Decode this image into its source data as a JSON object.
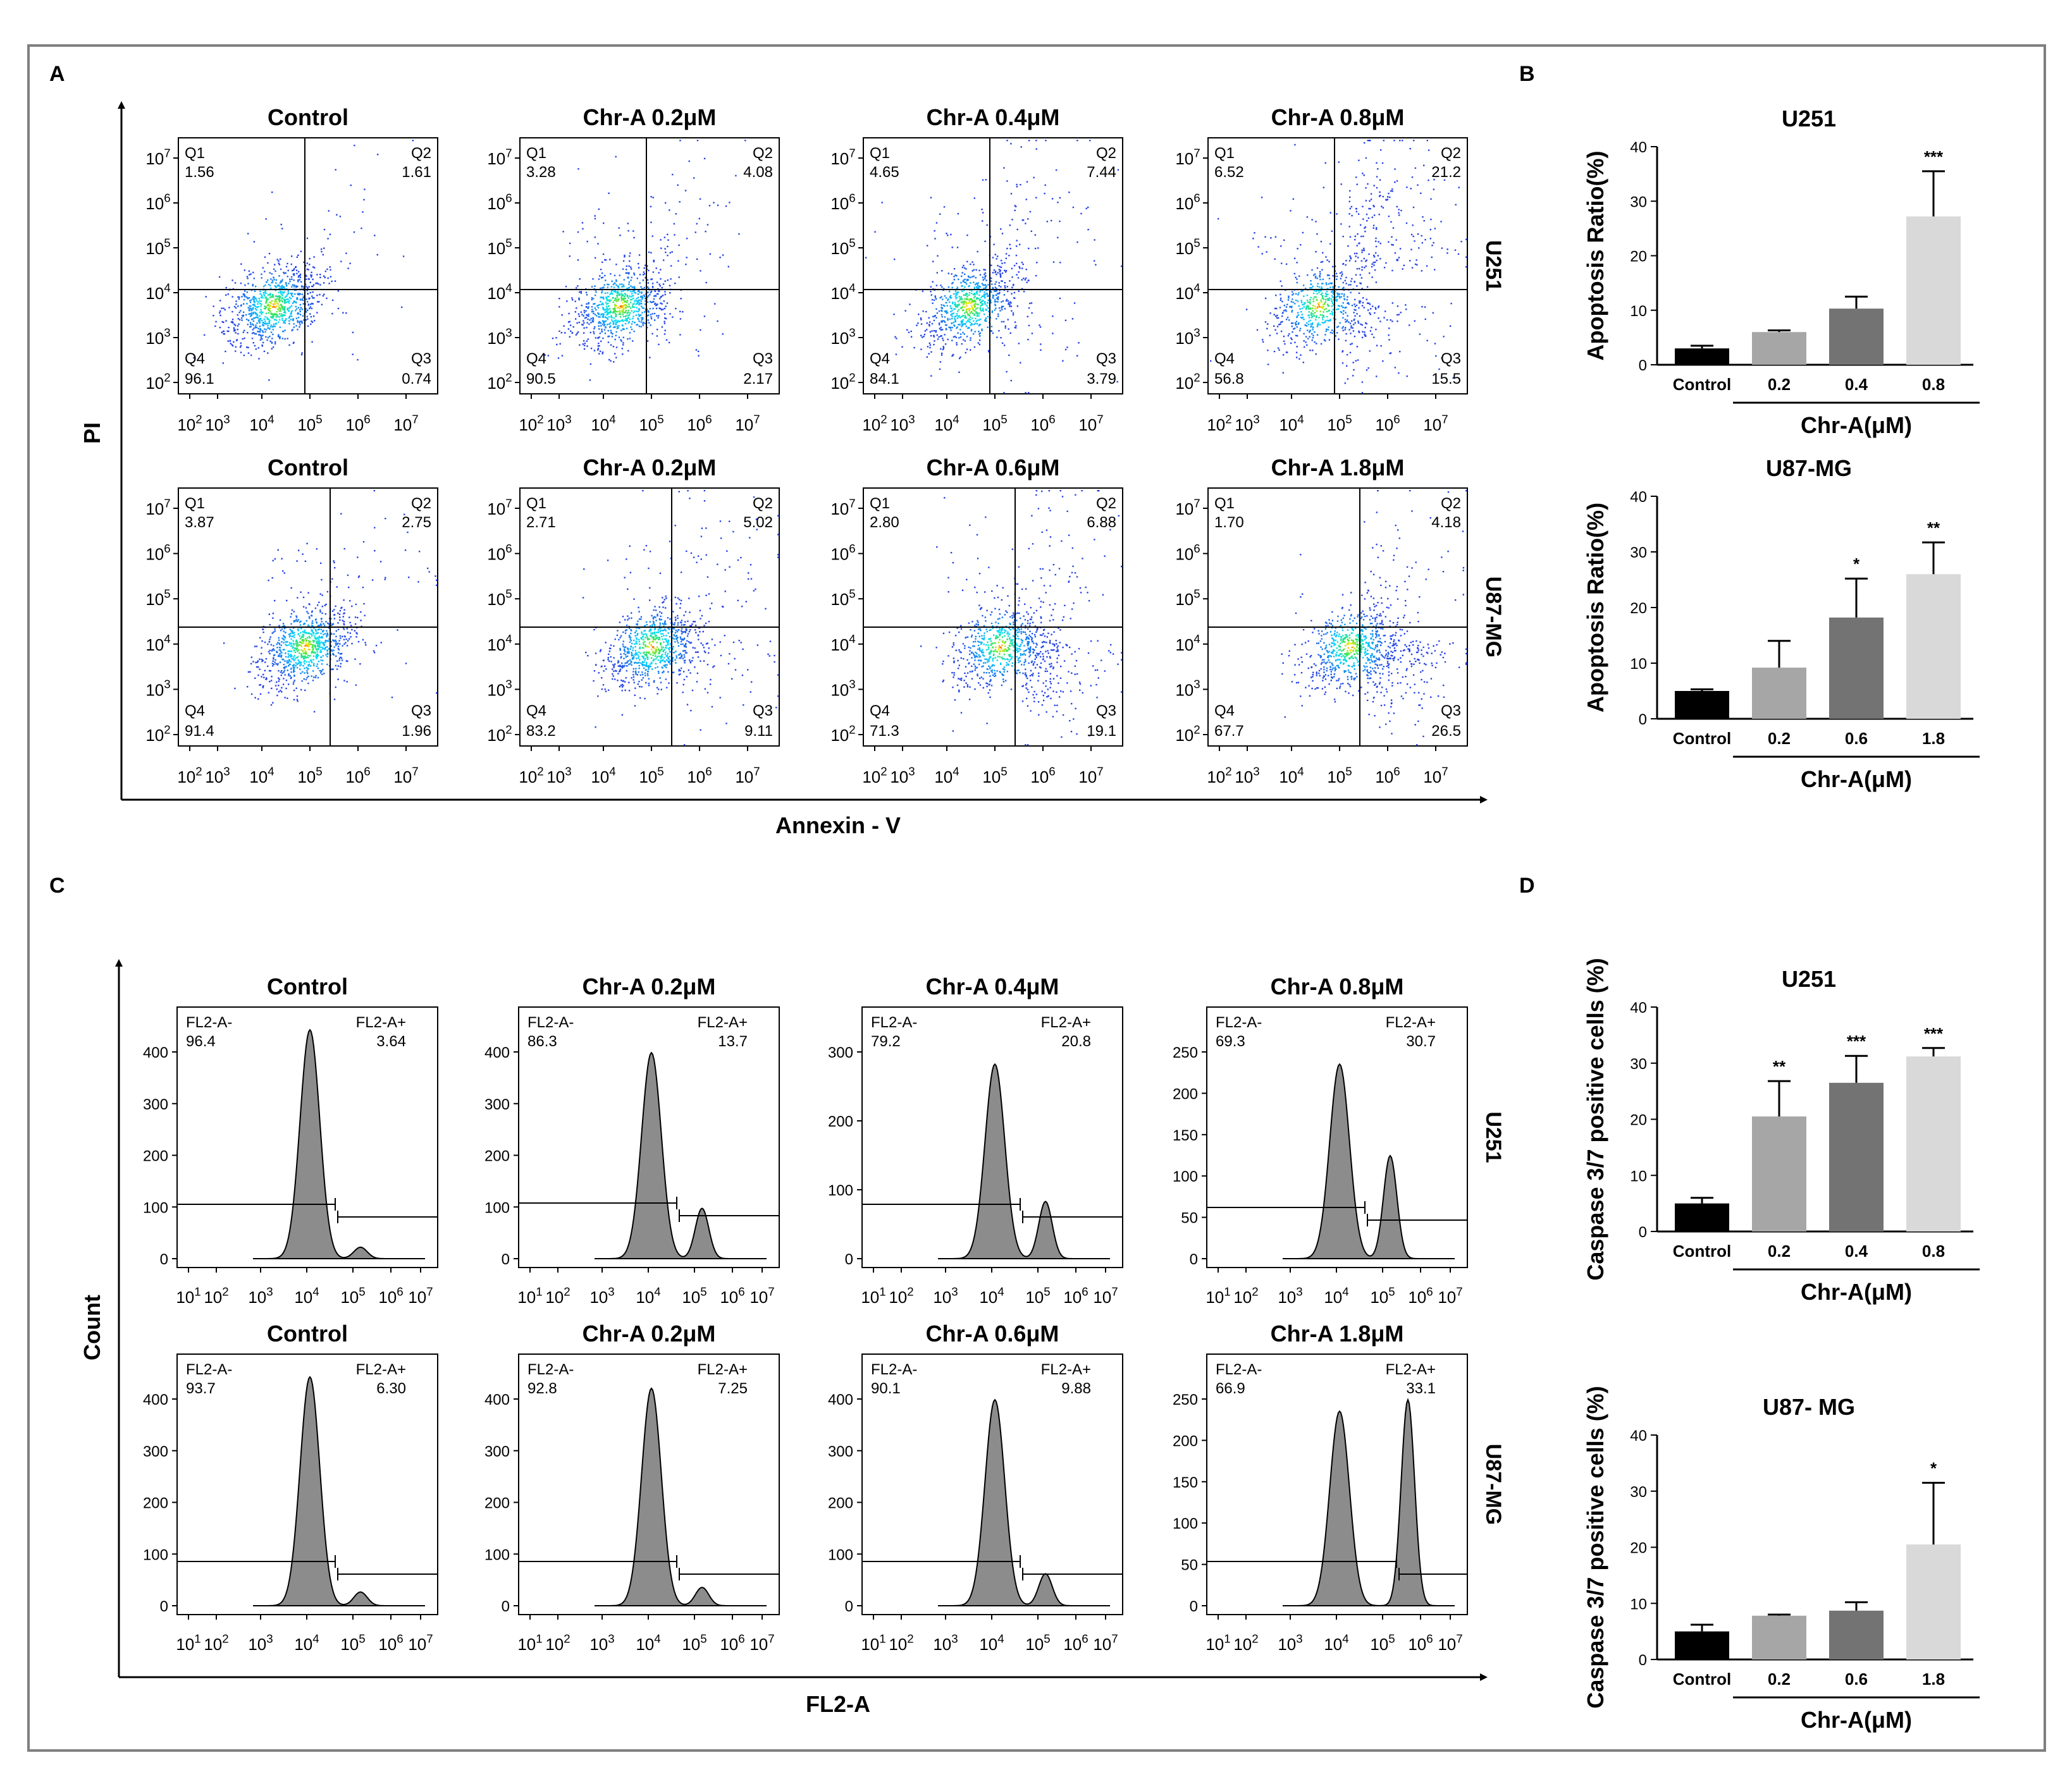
{
  "panel_labels": [
    "A",
    "B",
    "C",
    "D"
  ],
  "annexin": {
    "x_axis_label": "Annexin - V",
    "y_axis_label": "PI",
    "tick_labels": [
      "10",
      "10",
      "10",
      "10",
      "10",
      "10"
    ],
    "tick_exponents": [
      "2",
      "3",
      "4",
      "5",
      "6",
      "7"
    ],
    "quadrant_names": [
      "Q1",
      "Q2",
      "Q3",
      "Q4"
    ],
    "rows": [
      {
        "cell_line": "U251",
        "plots": [
          {
            "title": "Control",
            "q1": "1.56",
            "q2": "1.61",
            "q3": "0.74",
            "q4": "96.1"
          },
          {
            "title": "Chr-A 0.2μM",
            "q1": "3.28",
            "q2": "4.08",
            "q3": "2.17",
            "q4": "90.5"
          },
          {
            "title": "Chr-A 0.4μM",
            "q1": "4.65",
            "q2": "7.44",
            "q3": "3.79",
            "q4": "84.1"
          },
          {
            "title": "Chr-A 0.8μM",
            "q1": "6.52",
            "q2": "21.2",
            "q3": "15.5",
            "q4": "56.8"
          }
        ]
      },
      {
        "cell_line": "U87-MG",
        "plots": [
          {
            "title": "Control",
            "q1": "3.87",
            "q2": "2.75",
            "q3": "1.96",
            "q4": "91.4"
          },
          {
            "title": "Chr-A 0.2μM",
            "q1": "2.71",
            "q2": "5.02",
            "q3": "9.11",
            "q4": "83.2"
          },
          {
            "title": "Chr-A 0.6μM",
            "q1": "2.80",
            "q2": "6.88",
            "q3": "19.1",
            "q4": "71.3"
          },
          {
            "title": "Chr-A 1.8μM",
            "q1": "1.70",
            "q2": "4.18",
            "q3": "26.5",
            "q4": "67.7"
          }
        ]
      }
    ]
  },
  "caspase_hist": {
    "x_axis_label": "FL2-A",
    "y_axis_label": "Count",
    "tick_labels": [
      "10",
      "10",
      "10",
      "10",
      "10",
      "10",
      "10"
    ],
    "tick_exponents": [
      "1",
      "2",
      "3",
      "4",
      "5",
      "6",
      "7"
    ],
    "gate_names": [
      "FL2-A-",
      "FL2-A+"
    ],
    "rows": [
      {
        "cell_line": "U251",
        "plots": [
          {
            "title": "Control",
            "neg": "96.4",
            "pos": "3.64",
            "y_ticks": [
              "0",
              "100",
              "200",
              "300",
              "400"
            ]
          },
          {
            "title": "Chr-A 0.2μM",
            "neg": "86.3",
            "pos": "13.7",
            "y_ticks": [
              "0",
              "100",
              "200",
              "300",
              "400"
            ]
          },
          {
            "title": "Chr-A 0.4μM",
            "neg": "79.2",
            "pos": "20.8",
            "y_ticks": [
              "0",
              "100",
              "200",
              "300"
            ]
          },
          {
            "title": "Chr-A 0.8μM",
            "neg": "69.3",
            "pos": "30.7",
            "y_ticks": [
              "0",
              "50",
              "100",
              "150",
              "200",
              "250"
            ]
          }
        ]
      },
      {
        "cell_line": "U87-MG",
        "plots": [
          {
            "title": "Control",
            "neg": "93.7",
            "pos": "6.30",
            "y_ticks": [
              "0",
              "100",
              "200",
              "300",
              "400"
            ]
          },
          {
            "title": "Chr-A 0.2μM",
            "neg": "92.8",
            "pos": "7.25",
            "y_ticks": [
              "0",
              "100",
              "200",
              "300",
              "400"
            ]
          },
          {
            "title": "Chr-A 0.6μM",
            "neg": "90.1",
            "pos": "9.88",
            "y_ticks": [
              "0",
              "100",
              "200",
              "300",
              "400"
            ]
          },
          {
            "title": "Chr-A 1.8μM",
            "neg": "66.9",
            "pos": "33.1",
            "y_ticks": [
              "0",
              "50",
              "100",
              "150",
              "200",
              "250"
            ]
          }
        ]
      }
    ]
  },
  "chart_data": [
    {
      "type": "bar",
      "panel": "B",
      "title": "U251",
      "categories": [
        "Control",
        "0.2",
        "0.4",
        "0.8"
      ],
      "values": [
        3,
        6,
        10.3,
        27.2
      ],
      "errors": [
        0.5,
        0.3,
        2.2,
        8.3
      ],
      "significance": [
        "",
        "",
        "",
        "***"
      ],
      "colors": [
        "#000000",
        "#a6a6a6",
        "#737373",
        "#d9d9d9"
      ],
      "ylabel": "Apoptosis Ratio(%)",
      "xlabel": "Chr-A(μM)",
      "ylim": [
        0,
        40
      ],
      "yticks": [
        "0",
        "10",
        "20",
        "30",
        "40"
      ]
    },
    {
      "type": "bar",
      "panel": "B",
      "title": "U87-MG",
      "categories": [
        "Control",
        "0.2",
        "0.6",
        "1.8"
      ],
      "values": [
        5,
        9.2,
        18.2,
        26
      ],
      "errors": [
        0.3,
        4.8,
        7,
        5.7
      ],
      "significance": [
        "",
        "",
        "*",
        "**"
      ],
      "colors": [
        "#000000",
        "#a6a6a6",
        "#737373",
        "#d9d9d9"
      ],
      "ylabel": "Apoptosis Ratio(%)",
      "xlabel": "Chr-A(μM)",
      "ylim": [
        0,
        40
      ],
      "yticks": [
        "0",
        "10",
        "20",
        "30",
        "40"
      ]
    },
    {
      "type": "bar",
      "panel": "D",
      "title": "U251",
      "categories": [
        "Control",
        "0.2",
        "0.4",
        "0.8"
      ],
      "values": [
        5,
        20.5,
        26.5,
        31.2
      ],
      "errors": [
        1,
        6.3,
        4.8,
        1.5
      ],
      "significance": [
        "",
        "**",
        "***",
        "***"
      ],
      "colors": [
        "#000000",
        "#a6a6a6",
        "#737373",
        "#d9d9d9"
      ],
      "ylabel": "Caspase 3/7 positive cells (%)",
      "xlabel": "Chr-A(μM)",
      "ylim": [
        0,
        40
      ],
      "yticks": [
        "0",
        "10",
        "20",
        "30",
        "40"
      ]
    },
    {
      "type": "bar",
      "panel": "D",
      "title": "U87- MG",
      "categories": [
        "Control",
        "0.2",
        "0.6",
        "1.8"
      ],
      "values": [
        5,
        7.8,
        8.7,
        20.5
      ],
      "errors": [
        1.2,
        0.2,
        1.5,
        11
      ],
      "significance": [
        "",
        "",
        "",
        "*"
      ],
      "colors": [
        "#000000",
        "#a6a6a6",
        "#737373",
        "#d9d9d9"
      ],
      "ylabel": "Caspase 3/7 positive cells (%)",
      "xlabel": "Chr-A(μM)",
      "ylim": [
        0,
        40
      ],
      "yticks": [
        "0",
        "10",
        "20",
        "30",
        "40"
      ]
    }
  ]
}
